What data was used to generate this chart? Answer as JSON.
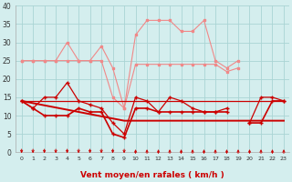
{
  "x": [
    0,
    1,
    2,
    3,
    4,
    5,
    6,
    7,
    8,
    9,
    10,
    11,
    12,
    13,
    14,
    15,
    16,
    17,
    18,
    19,
    20,
    21,
    22,
    23
  ],
  "pink_rafales": [
    25,
    25,
    25,
    25,
    30,
    25,
    25,
    29,
    23,
    12,
    32,
    36,
    36,
    36,
    33,
    33,
    36,
    25,
    23,
    25,
    null,
    null,
    null,
    null
  ],
  "pink_moyen": [
    25,
    25,
    25,
    25,
    25,
    25,
    25,
    25,
    15,
    12,
    24,
    24,
    24,
    24,
    24,
    24,
    24,
    24,
    22,
    23,
    null,
    null,
    null,
    null
  ],
  "red_rafales": [
    14,
    12,
    15,
    15,
    19,
    14,
    13,
    12,
    8,
    5,
    15,
    14,
    11,
    15,
    14,
    12,
    11,
    11,
    12,
    null,
    8,
    15,
    15,
    14
  ],
  "red_moyen": [
    14,
    12,
    10,
    10,
    10,
    12,
    11,
    11,
    5,
    4,
    12,
    12,
    11,
    11,
    11,
    11,
    11,
    11,
    11,
    null,
    8,
    8,
    14,
    14
  ],
  "trend_flat": [
    14,
    14,
    14,
    14,
    14,
    14,
    14,
    14,
    14,
    14,
    14,
    14,
    14,
    14,
    14,
    14,
    14,
    14,
    14,
    14,
    14,
    14,
    14,
    14
  ],
  "trend_decline": [
    14,
    13.4,
    12.8,
    12.2,
    11.6,
    11.0,
    10.4,
    9.8,
    9.2,
    8.6,
    8.6,
    8.6,
    8.6,
    8.6,
    8.6,
    8.6,
    8.6,
    8.6,
    8.6,
    8.6,
    8.6,
    8.6,
    8.6,
    8.6
  ],
  "wind_dirs_down": [
    0,
    1,
    2,
    3,
    4,
    5,
    6,
    7,
    8,
    9
  ],
  "wind_dirs_up": [
    10,
    11,
    12,
    13,
    14,
    15,
    16,
    17,
    18,
    19,
    20,
    21,
    22,
    23
  ],
  "bg_color": "#d4eeee",
  "grid_color": "#aad4d4",
  "pink_color": "#f08888",
  "red_color": "#cc0000",
  "xlabel": "Vent moyen/en rafales ( km/h )",
  "xlim": [
    -0.5,
    23.5
  ],
  "ylim": [
    0,
    40
  ],
  "yticks": [
    0,
    5,
    10,
    15,
    20,
    25,
    30,
    35,
    40
  ],
  "xticks": [
    0,
    1,
    2,
    3,
    4,
    5,
    6,
    7,
    8,
    9,
    10,
    11,
    12,
    13,
    14,
    15,
    16,
    17,
    18,
    19,
    20,
    21,
    22,
    23
  ]
}
